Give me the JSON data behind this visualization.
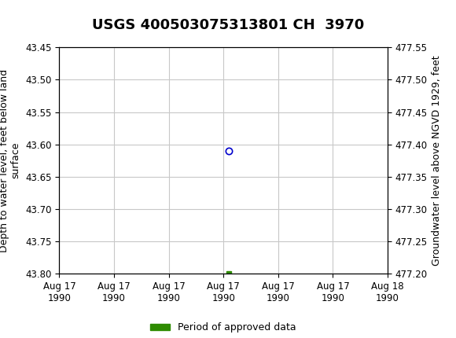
{
  "title": "USGS 400503075313801 CH  3970",
  "header_color": "#1a6b3c",
  "left_ylabel": "Depth to water level, feet below land\nsurface",
  "right_ylabel": "Groundwater level above NGVD 1929, feet",
  "ylim_left": [
    43.8,
    43.45
  ],
  "ylim_right": [
    477.2,
    477.55
  ],
  "yticks_left": [
    43.45,
    43.5,
    43.55,
    43.6,
    43.65,
    43.7,
    43.75,
    43.8
  ],
  "yticks_right": [
    477.55,
    477.5,
    477.45,
    477.4,
    477.35,
    477.3,
    477.25,
    477.2
  ],
  "xlim": [
    0,
    6
  ],
  "xtick_labels": [
    "Aug 17\n1990",
    "Aug 17\n1990",
    "Aug 17\n1990",
    "Aug 17\n1990",
    "Aug 17\n1990",
    "Aug 17\n1990",
    "Aug 18\n1990"
  ],
  "xtick_positions": [
    0,
    1,
    2,
    3,
    4,
    5,
    6
  ],
  "data_point_x": 3.1,
  "data_point_y": 43.61,
  "data_point_color": "#0000cc",
  "green_square_x": 3.1,
  "green_square_y": 43.8,
  "green_square_color": "#2e8b00",
  "legend_label": "Period of approved data",
  "legend_color": "#2e8b00",
  "bg_color": "#ffffff",
  "plot_bg_color": "#ffffff",
  "grid_color": "#c8c8c8",
  "title_fontsize": 13,
  "axis_label_fontsize": 9,
  "tick_fontsize": 8.5
}
